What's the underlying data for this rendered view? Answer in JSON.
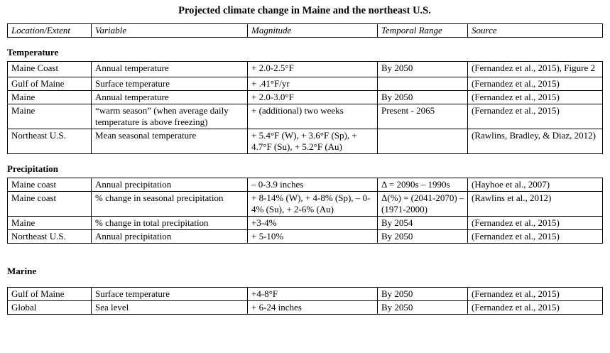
{
  "title": "Projected climate change in Maine and the northeast U.S.",
  "table": {
    "columns": [
      "Location/Extent",
      "Variable",
      "Magnitude",
      "Temporal Range",
      "Source"
    ],
    "sections": [
      {
        "heading": "Temperature",
        "rows": [
          [
            "Maine Coast",
            "Annual temperature",
            "+ 2.0-2.5°F",
            "By 2050",
            "(Fernandez et al., 2015), Figure 2"
          ],
          [
            "Gulf of Maine",
            "Surface temperature",
            "+ .41°F/yr",
            "",
            "(Fernandez et al., 2015)"
          ],
          [
            "Maine",
            "Annual temperature",
            "+ 2.0-3.0°F",
            "By 2050",
            "(Fernandez et al., 2015)"
          ],
          [
            "Maine",
            "“warm season” (when average daily temperature is above freezing)",
            "+ (additional) two weeks",
            "Present - 2065",
            "(Fernandez et al., 2015)"
          ],
          [
            "Northeast U.S.",
            "Mean seasonal temperature",
            "+ 5.4°F (W), + 3.6°F (Sp), + 4.7°F (Su), + 5.2°F (Au)",
            "",
            "(Rawlins, Bradley, & Diaz, 2012)"
          ]
        ]
      },
      {
        "heading": "Precipitation",
        "rows": [
          [
            "Maine coast",
            "Annual precipitation",
            "– 0-3.9 inches",
            "Δ = 2090s – 1990s",
            "(Hayhoe et al., 2007)"
          ],
          [
            "Maine coast",
            "% change in seasonal precipitation",
            "+ 8-14% (W), + 4-8% (Sp), – 0-4% (Su), + 2-6% (Au)",
            "Δ(%) = (2041-2070) – (1971-2000)",
            "(Rawlins et al., 2012)"
          ],
          [
            "Maine",
            "% change in total precipitation",
            "+3-4%",
            "By 2054",
            "(Fernandez et al., 2015)"
          ],
          [
            "Northeast U.S.",
            "Annual precipitation",
            "+ 5-10%",
            "By 2050",
            "(Fernandez et al., 2015)"
          ]
        ]
      },
      {
        "heading": "Marine",
        "rows": [
          [
            "Gulf of Maine",
            "Surface temperature",
            "+4-8°F",
            "By 2050",
            "(Fernandez et al., 2015)"
          ],
          [
            "Global",
            "Sea level",
            "+ 6-24 inches",
            "By 2050",
            "(Fernandez et al., 2015)"
          ]
        ]
      }
    ]
  }
}
